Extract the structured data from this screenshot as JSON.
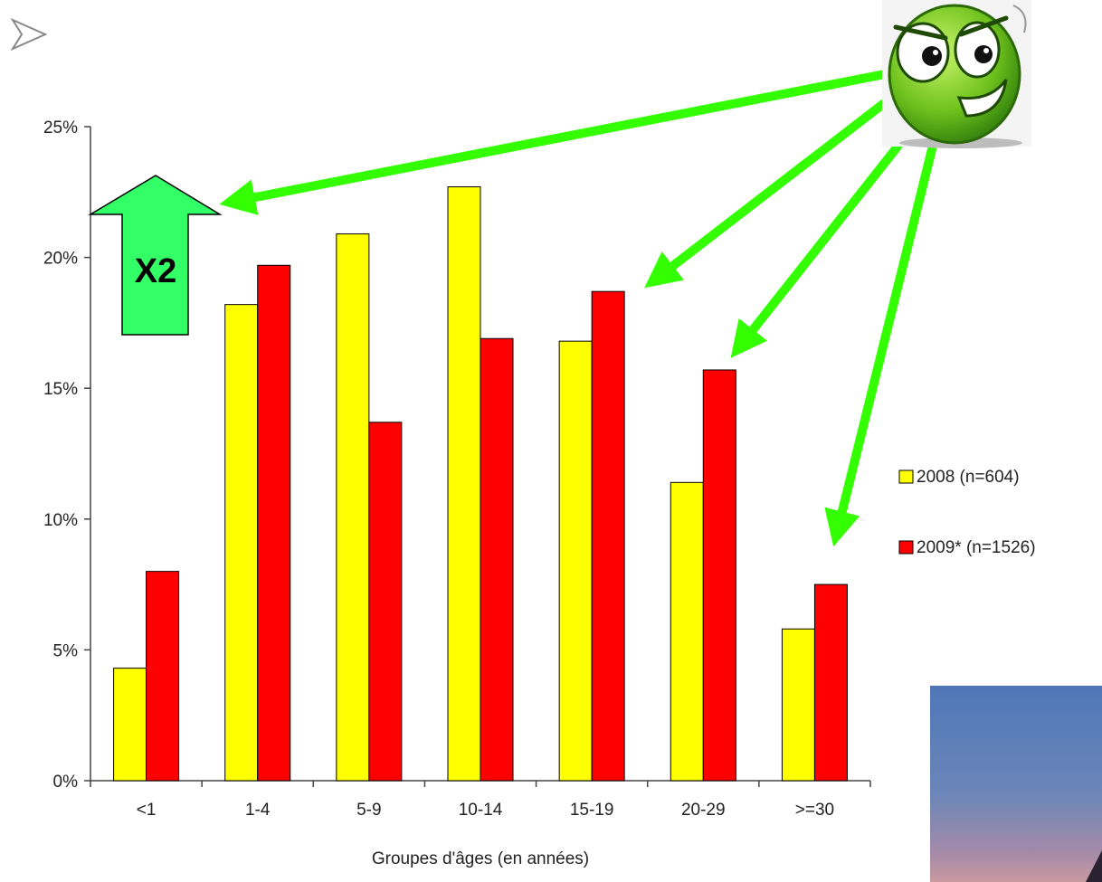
{
  "chart_data": {
    "type": "bar",
    "categories": [
      "<1",
      "1-4",
      "5-9",
      "10-14",
      "15-19",
      "20-29",
      ">=30"
    ],
    "series": [
      {
        "name": "2008 (n=604)",
        "color": "#ffff00",
        "values": [
          4.3,
          18.2,
          20.9,
          22.7,
          16.8,
          11.4,
          5.8
        ]
      },
      {
        "name": "2009* (n=1526)",
        "color": "#ff0000",
        "values": [
          8.0,
          19.7,
          13.7,
          16.9,
          18.7,
          15.7,
          7.5
        ]
      }
    ],
    "xlabel": "Groupes d'âges (en années)",
    "ylabel": "",
    "ylim": [
      0,
      25
    ],
    "yticks": [
      "0%",
      "5%",
      "10%",
      "15%",
      "20%",
      "25%"
    ],
    "legend_position": "right",
    "grid": false
  },
  "annotations": {
    "arrow_label": "X2",
    "arrow_color": "#33ff66",
    "pointer_color": "#33ff00",
    "bullet_icon": "arrowhead-bullet-icon",
    "mascot_icon": "green-smiley-icon",
    "photo_icon": "dusk-sky-photo"
  }
}
